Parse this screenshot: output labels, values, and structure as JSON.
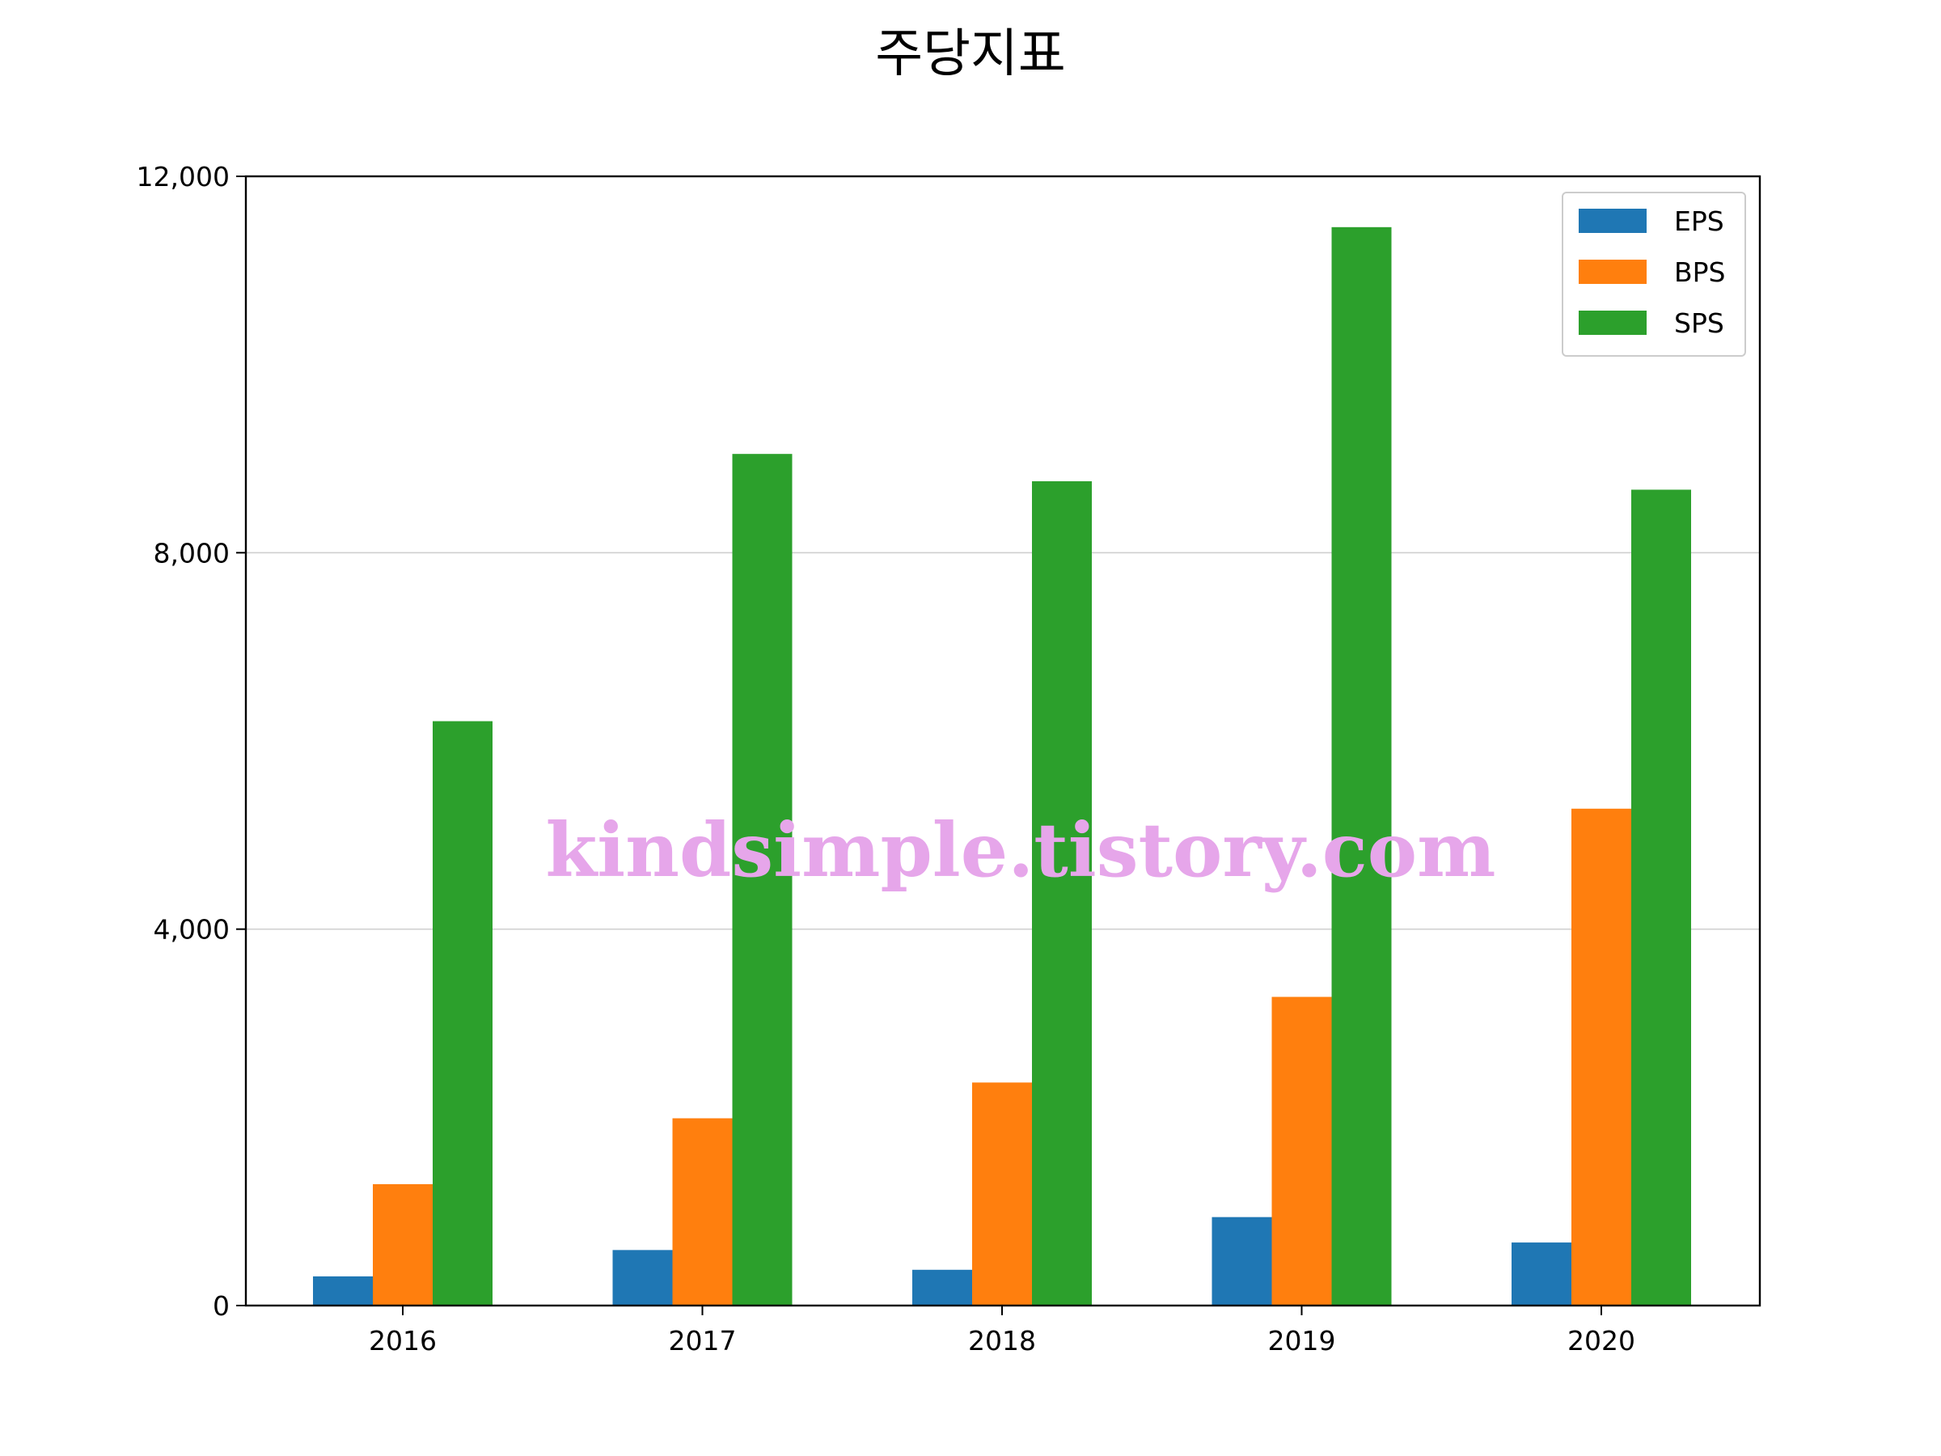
{
  "chart_data": {
    "type": "bar",
    "title": "주당지표",
    "xlabel": "",
    "ylabel": "",
    "categories": [
      "2016",
      "2017",
      "2018",
      "2019",
      "2020"
    ],
    "series": [
      {
        "name": "EPS",
        "color": "#1f77b4",
        "values": [
          310,
          590,
          380,
          940,
          670
        ]
      },
      {
        "name": "BPS",
        "color": "#ff7f0e",
        "values": [
          1290,
          1990,
          2370,
          3280,
          5280
        ]
      },
      {
        "name": "SPS",
        "color": "#2ca02c",
        "values": [
          6210,
          9050,
          8760,
          11460,
          8670
        ]
      }
    ],
    "ylim": [
      0,
      12000
    ],
    "yticks": [
      0,
      4000,
      8000,
      12000
    ],
    "ytick_labels": [
      "0",
      "4,000",
      "8,000",
      "12,000"
    ],
    "grid": "y",
    "legend_position": "top-right",
    "watermark": "kindsimple.tistory.com"
  }
}
